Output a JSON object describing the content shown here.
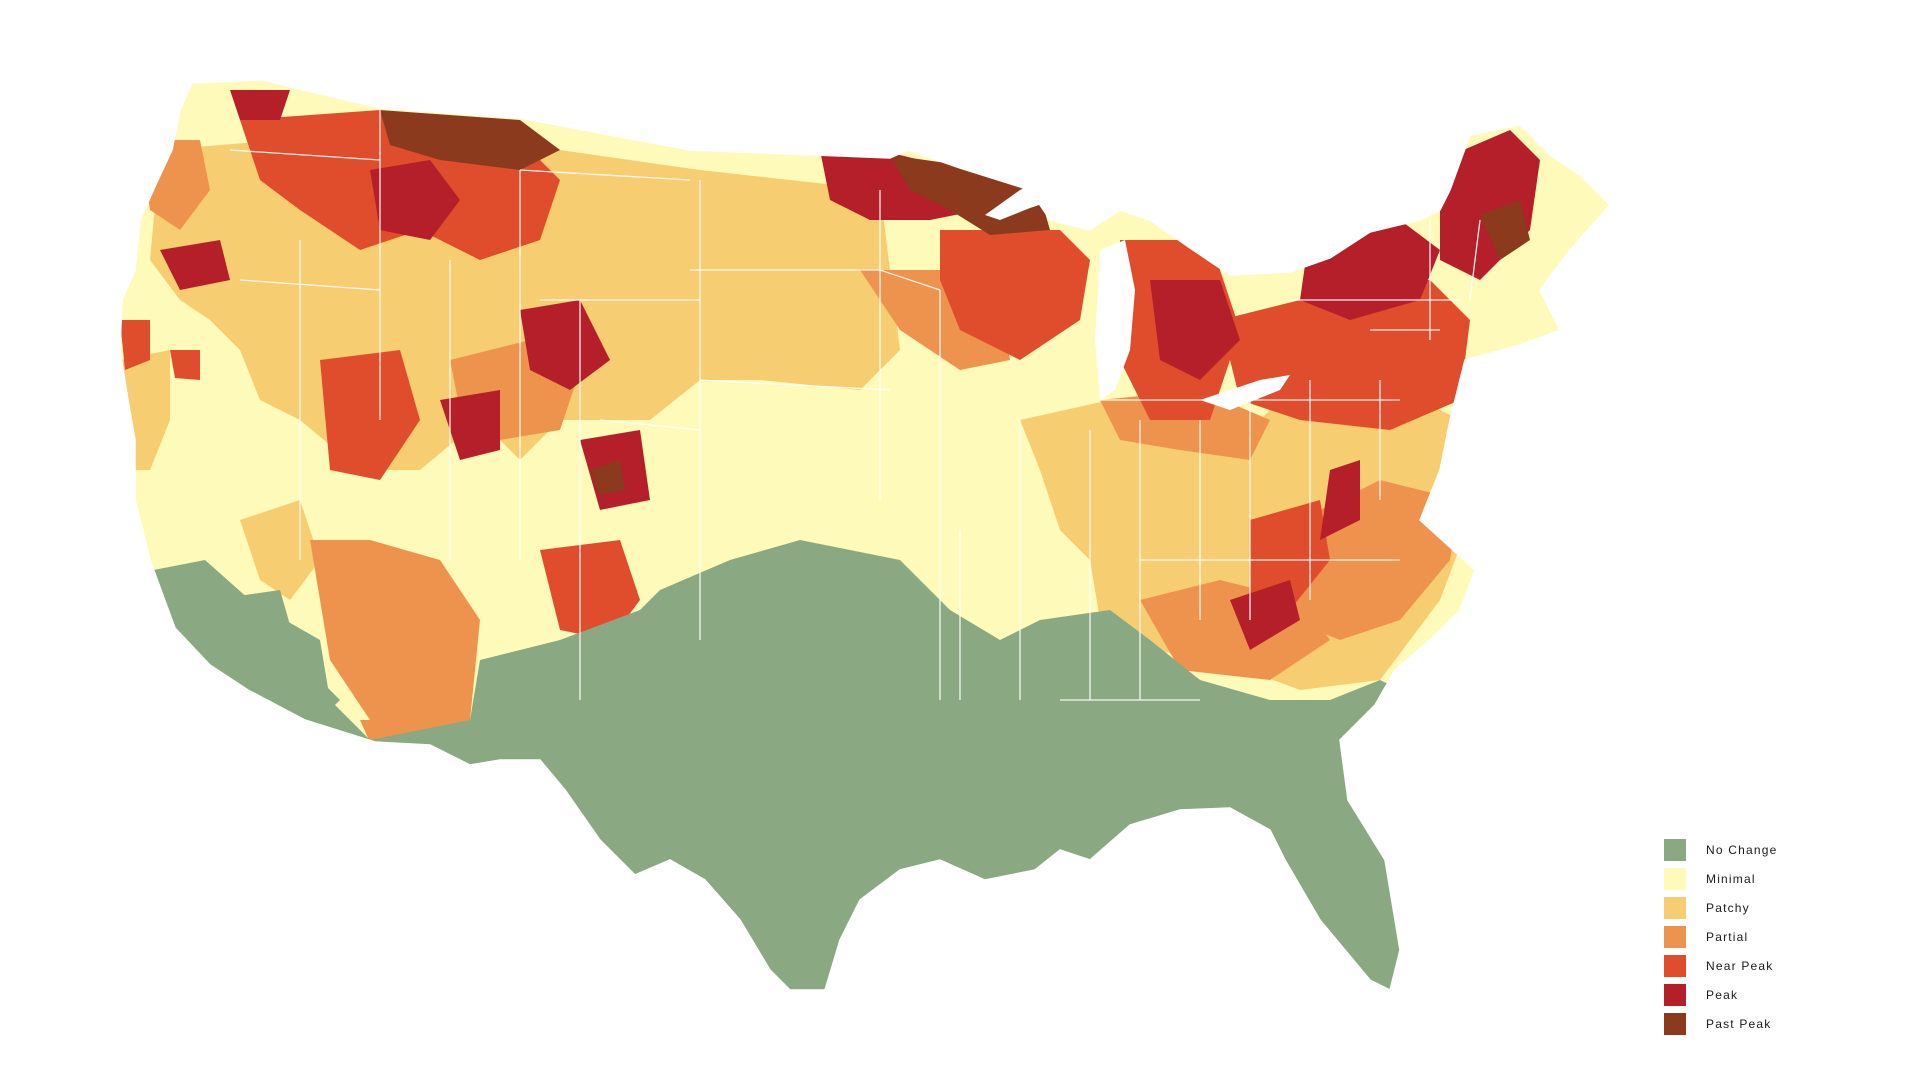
{
  "legend": {
    "items": [
      {
        "label": "No Change",
        "color": "#8aa882"
      },
      {
        "label": "Minimal",
        "color": "#fefab9"
      },
      {
        "label": "Patchy",
        "color": "#f7cd72"
      },
      {
        "label": "Partial",
        "color": "#ee934e"
      },
      {
        "label": "Near Peak",
        "color": "#e04d2c"
      },
      {
        "label": "Peak",
        "color": "#b41f2a"
      },
      {
        "label": "Past Peak",
        "color": "#8b3a1e"
      }
    ]
  },
  "map": {
    "subject": "Contiguous United States fall foliage map, county-level color categories",
    "border_color": "#ffffff"
  }
}
